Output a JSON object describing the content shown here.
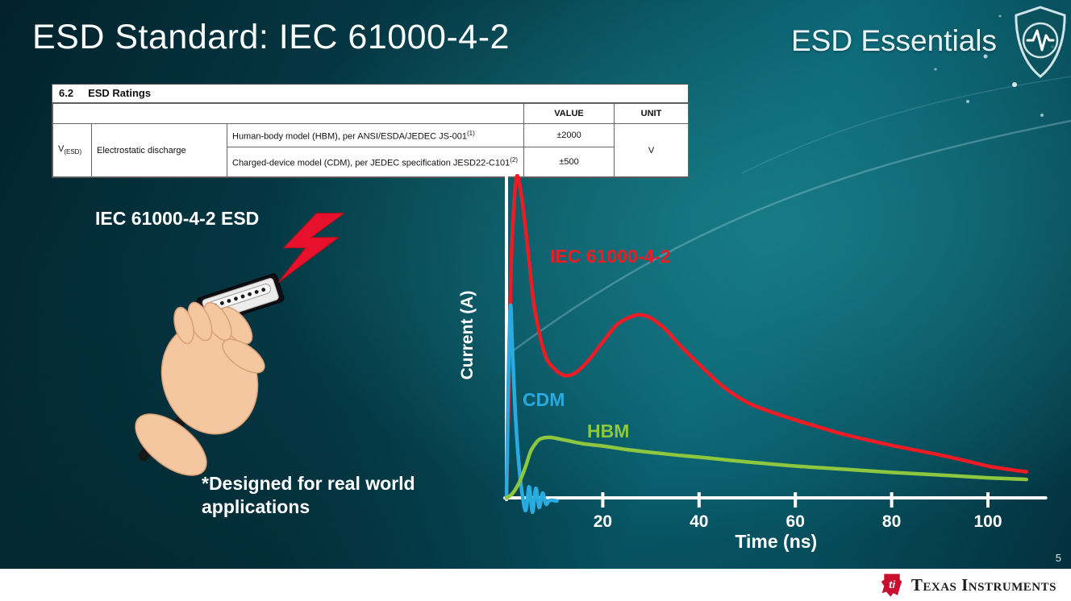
{
  "slide": {
    "title": "ESD Standard: IEC 61000-4-2",
    "series_title": "ESD Essentials",
    "page_number": "5"
  },
  "table": {
    "section_number": "6.2",
    "section_title": "ESD Ratings",
    "headers": {
      "value": "VALUE",
      "unit": "UNIT"
    },
    "param_symbol": "V",
    "param_symbol_sub": "(ESD)",
    "param_name": "Electrostatic discharge",
    "rows": [
      {
        "desc": "Human-body model (HBM), per ANSI/ESDA/JEDEC JS-001",
        "desc_sup": "(1)",
        "value": "±2000"
      },
      {
        "desc": "Charged-device model (CDM), per JEDEC specification JESD22-C101",
        "desc_sup": "(2)",
        "value": "±500"
      }
    ],
    "unit": "V"
  },
  "left": {
    "connector_label": "IEC 61000-4-2 ESD",
    "footnote": "*Designed for real world applications"
  },
  "chart_data": {
    "type": "line",
    "title": "",
    "xlabel": "Time (ns)",
    "ylabel": "Current (A)",
    "xlim": [
      0,
      112
    ],
    "x_ticks": [
      20,
      40,
      60,
      80,
      100
    ],
    "y_axis_numeric_labels": false,
    "y_values_normalized": true,
    "grid": false,
    "legend_position": "inline-labels",
    "series": [
      {
        "name": "IEC 61000-4-2",
        "color": "#ed1c24",
        "x": [
          0,
          0.5,
          1,
          2,
          3,
          4,
          5,
          6,
          8,
          10,
          12,
          14,
          16,
          18,
          20,
          23,
          26,
          28,
          30,
          33,
          36,
          40,
          45,
          50,
          55,
          60,
          65,
          70,
          75,
          80,
          85,
          90,
          95,
          100,
          105,
          108
        ],
        "y": [
          0,
          0.35,
          0.75,
          1.0,
          0.96,
          0.84,
          0.7,
          0.58,
          0.45,
          0.405,
          0.385,
          0.39,
          0.415,
          0.45,
          0.49,
          0.545,
          0.57,
          0.575,
          0.565,
          0.53,
          0.48,
          0.42,
          0.35,
          0.3,
          0.27,
          0.245,
          0.222,
          0.2,
          0.182,
          0.165,
          0.15,
          0.135,
          0.118,
          0.1,
          0.088,
          0.082
        ]
      },
      {
        "name": "CDM",
        "color": "#29abe2",
        "x": [
          0,
          0.3,
          0.8,
          1.2,
          1.8,
          2.5,
          3.2,
          4,
          4.7,
          5.4,
          6.1,
          6.8,
          7.5,
          8.2,
          9,
          10.5
        ],
        "y": [
          0,
          0.3,
          0.6,
          0.48,
          0.28,
          0.12,
          0.02,
          -0.04,
          0.035,
          -0.045,
          0.03,
          -0.03,
          0.015,
          -0.02,
          -0.008,
          -0.01
        ]
      },
      {
        "name": "HBM",
        "color": "#8dc63f",
        "x": [
          0,
          1,
          2,
          3,
          4,
          5,
          6,
          7,
          9,
          12,
          16,
          20,
          25,
          30,
          35,
          40,
          50,
          60,
          70,
          80,
          90,
          100,
          108
        ],
        "y": [
          0,
          0.01,
          0.03,
          0.06,
          0.1,
          0.145,
          0.17,
          0.185,
          0.19,
          0.182,
          0.17,
          0.163,
          0.152,
          0.143,
          0.135,
          0.128,
          0.113,
          0.1,
          0.09,
          0.08,
          0.072,
          0.063,
          0.058
        ]
      }
    ]
  },
  "icons": {
    "shield": "shield-with-heartbeat-pulse",
    "strike": "red-lightning-bolt",
    "brand_bug": "ti-red-bug"
  },
  "colors": {
    "accent_red": "#e8112d",
    "background_teal": "#086071",
    "table_bg": "#ffffff",
    "footer_bg": "#ffffff"
  },
  "footer": {
    "brand": "Texas Instruments"
  }
}
